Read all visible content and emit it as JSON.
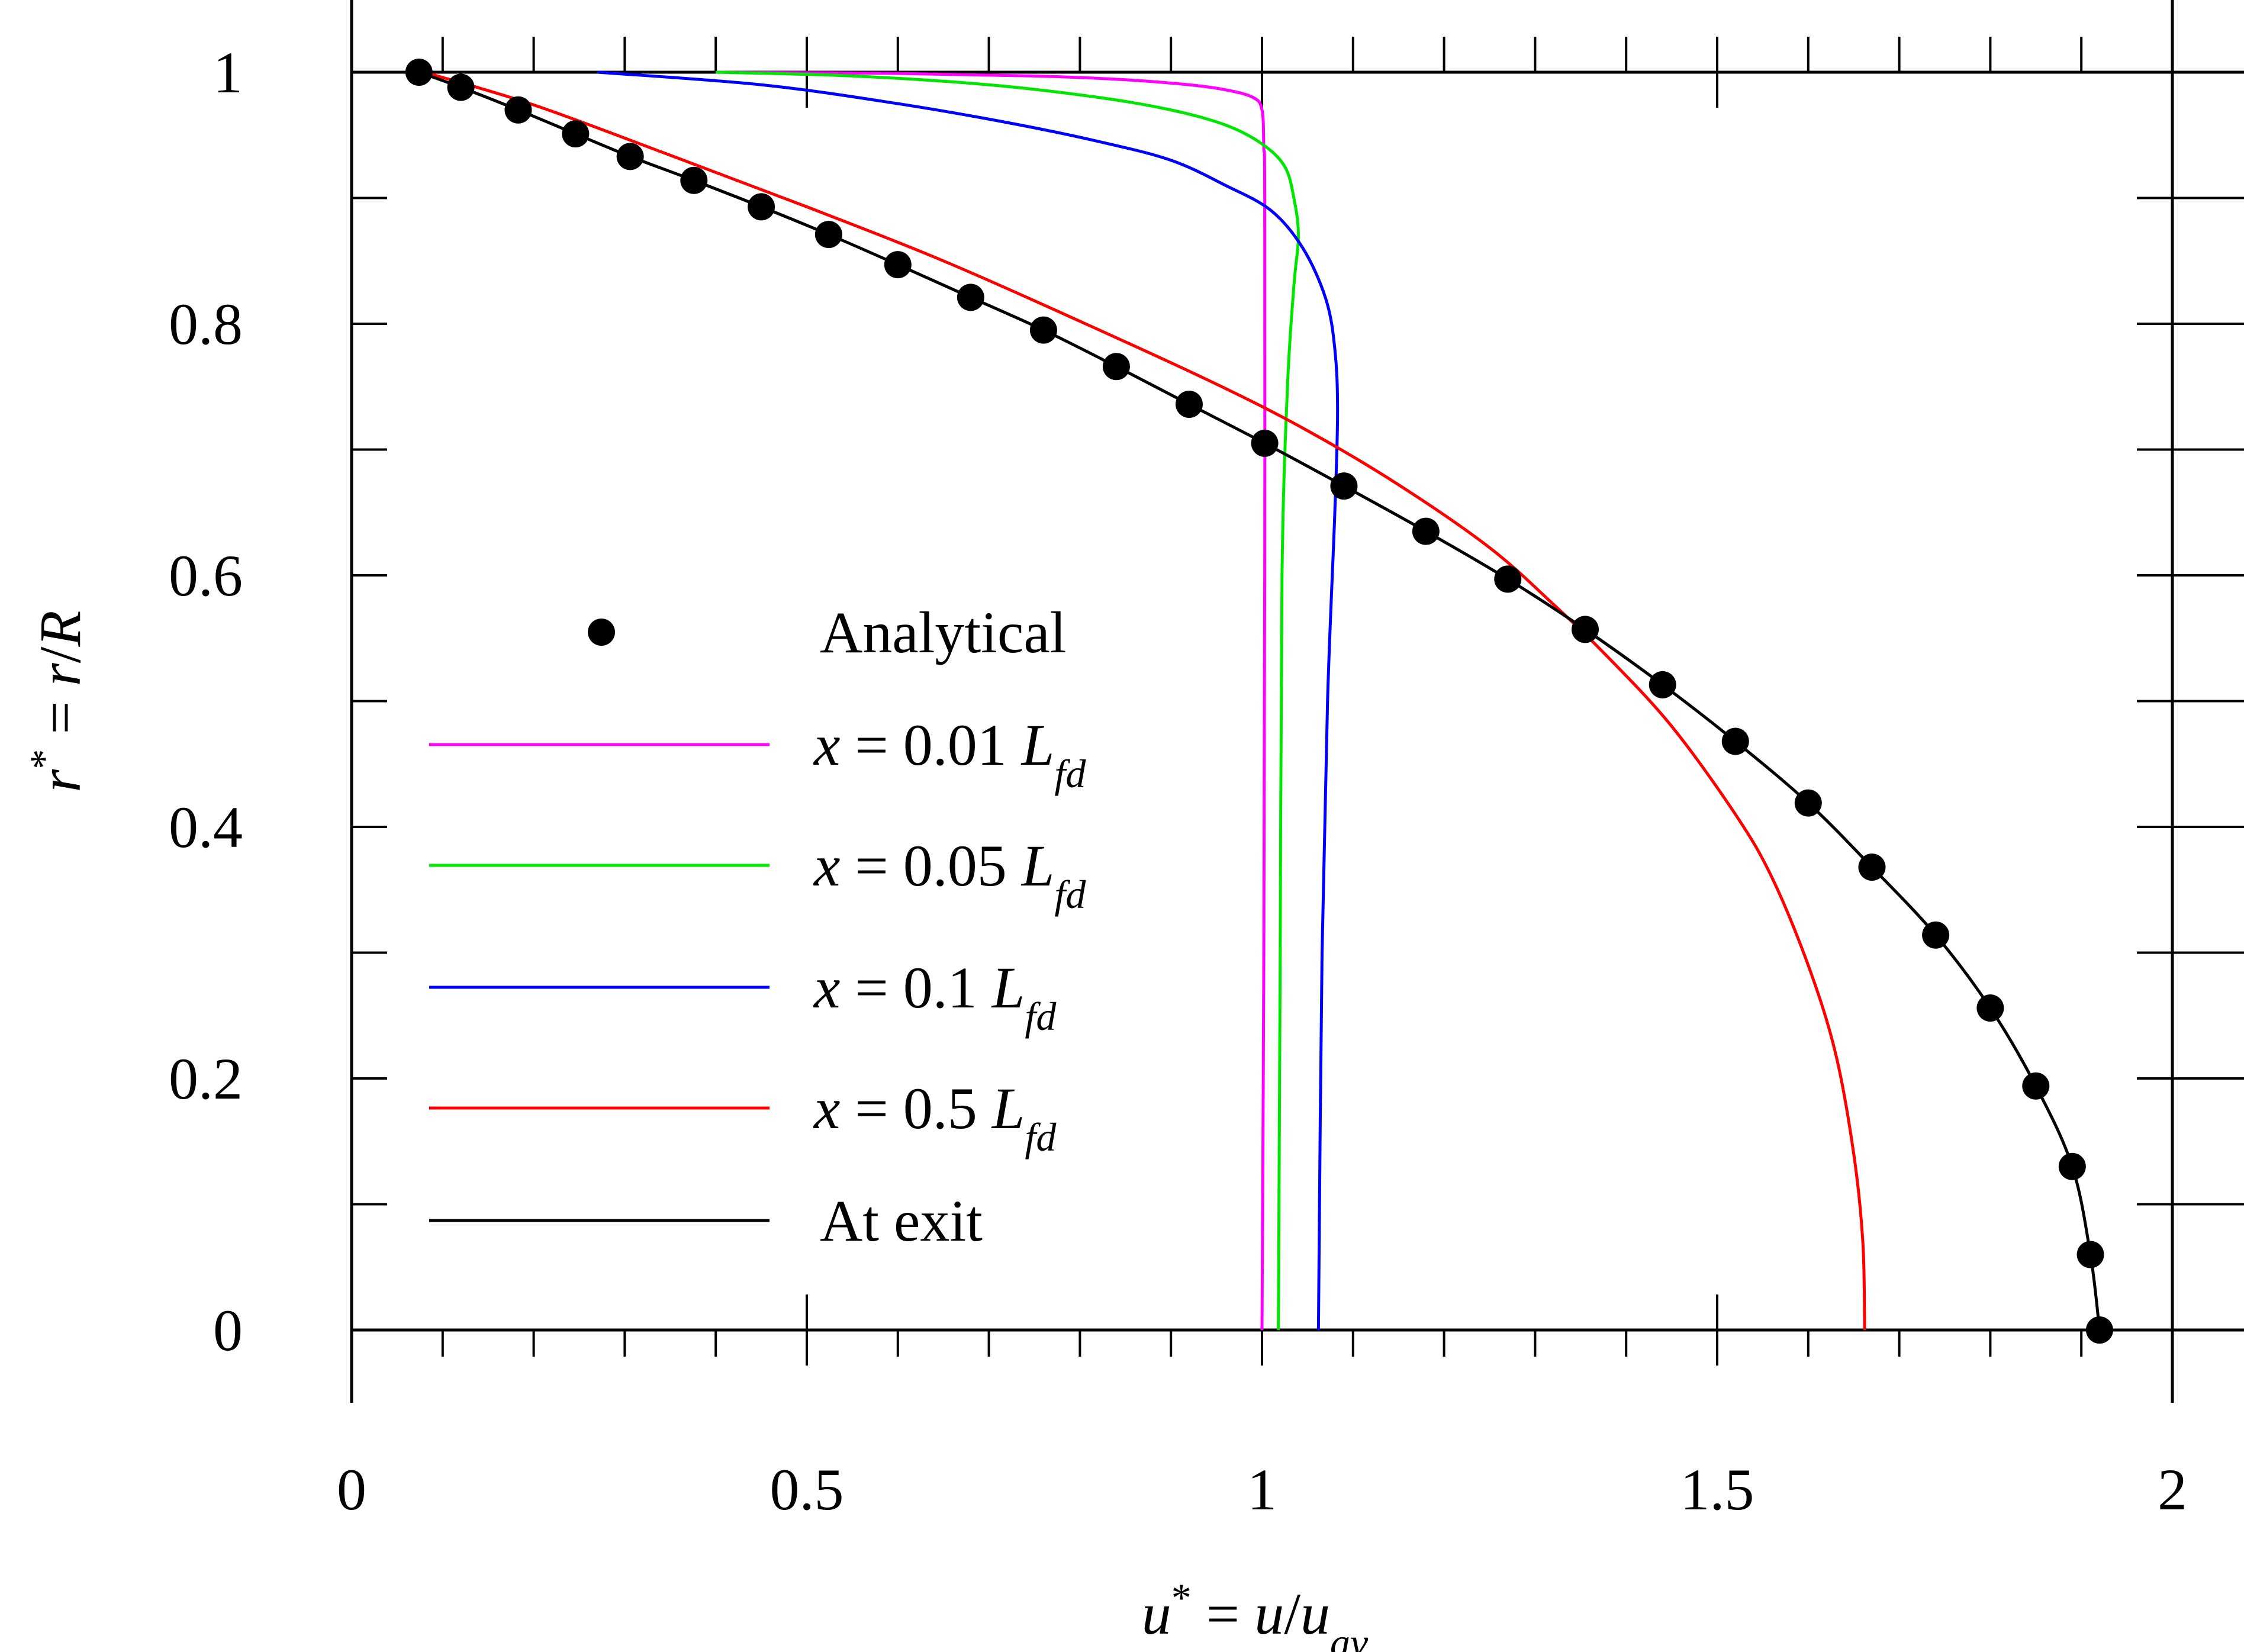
{
  "chart_data": {
    "type": "line",
    "xlabel": {
      "main": "u",
      "sup": "*",
      "mid": " = ",
      "var": "u",
      "slash": "/",
      "var2": "u",
      "sub": "av"
    },
    "ylabel": {
      "main": "r",
      "sup": "*",
      "mid": " = ",
      "var": "r",
      "slash": "/",
      "var2": "R"
    },
    "xlim": [
      0,
      2
    ],
    "ylim": [
      0,
      1
    ],
    "x_ticks": [
      0,
      0.5,
      1,
      1.5,
      2
    ],
    "x_tick_labels": [
      "0",
      "0.5",
      "1",
      "1.5",
      "2"
    ],
    "y_ticks": [
      0,
      0.2,
      0.4,
      0.6,
      0.8,
      1
    ],
    "y_tick_labels": [
      "0",
      "0.2",
      "0.4",
      "0.6",
      "0.8",
      "1"
    ],
    "legend_position": "center-left",
    "legend": [
      {
        "id": "analytical",
        "marker": "dot",
        "text": "Analytical",
        "color": "#000000"
      },
      {
        "id": "x001",
        "marker": "line",
        "prefix": "x",
        "mid": " = 0.01 ",
        "var": "L",
        "sub": "fd",
        "color": "#ff00ff"
      },
      {
        "id": "x005",
        "marker": "line",
        "prefix": "x",
        "mid": " = 0.05 ",
        "var": "L",
        "sub": "fd",
        "color": "#00e600"
      },
      {
        "id": "x01",
        "marker": "line",
        "prefix": "x",
        "mid": " = 0.1 ",
        "var": "L",
        "sub": "fd",
        "color": "#0000ff"
      },
      {
        "id": "x05",
        "marker": "line",
        "prefix": "x",
        "mid": " = 0.5 ",
        "var": "L",
        "sub": "fd",
        "color": "#ff0000"
      },
      {
        "id": "exit",
        "marker": "line",
        "text": "At exit",
        "color": "#000000"
      }
    ],
    "series": [
      {
        "name": "x = 0.01 Lfd",
        "color": "#ff00ff",
        "points": [
          [
            0.4,
            1.0
          ],
          [
            0.6,
            0.999
          ],
          [
            0.75,
            0.997
          ],
          [
            0.85,
            0.994
          ],
          [
            0.92,
            0.99
          ],
          [
            0.96,
            0.986
          ],
          [
            0.99,
            0.98
          ],
          [
            1.0,
            0.97
          ],
          [
            1.002,
            0.94
          ],
          [
            1.003,
            0.9
          ],
          [
            1.003,
            0.6
          ],
          [
            1.002,
            0.3
          ],
          [
            1.0,
            0.0
          ]
        ]
      },
      {
        "name": "x = 0.05 Lfd",
        "color": "#00e600",
        "points": [
          [
            0.4,
            1.0
          ],
          [
            0.55,
            0.997
          ],
          [
            0.7,
            0.99
          ],
          [
            0.82,
            0.98
          ],
          [
            0.9,
            0.97
          ],
          [
            0.96,
            0.958
          ],
          [
            1.0,
            0.943
          ],
          [
            1.025,
            0.925
          ],
          [
            1.035,
            0.9
          ],
          [
            1.04,
            0.87
          ],
          [
            1.035,
            0.83
          ],
          [
            1.028,
            0.75
          ],
          [
            1.022,
            0.6
          ],
          [
            1.02,
            0.3
          ],
          [
            1.018,
            0.0
          ]
        ]
      },
      {
        "name": "x = 0.1 Lfd",
        "color": "#0000ff",
        "points": [
          [
            0.27,
            1.0
          ],
          [
            0.45,
            0.99
          ],
          [
            0.6,
            0.975
          ],
          [
            0.72,
            0.96
          ],
          [
            0.82,
            0.945
          ],
          [
            0.9,
            0.93
          ],
          [
            0.96,
            0.91
          ],
          [
            1.01,
            0.89
          ],
          [
            1.045,
            0.86
          ],
          [
            1.07,
            0.82
          ],
          [
            1.08,
            0.78
          ],
          [
            1.083,
            0.73
          ],
          [
            1.08,
            0.65
          ],
          [
            1.072,
            0.5
          ],
          [
            1.066,
            0.3
          ],
          [
            1.062,
            0.0
          ]
        ]
      },
      {
        "name": "x = 0.5 Lfd",
        "color": "#ff0000",
        "points": [
          [
            0.08,
            1.0
          ],
          [
            0.2,
            0.974
          ],
          [
            0.35,
            0.934
          ],
          [
            0.5,
            0.893
          ],
          [
            0.65,
            0.85
          ],
          [
            0.8,
            0.802
          ],
          [
            0.95,
            0.752
          ],
          [
            1.05,
            0.715
          ],
          [
            1.15,
            0.672
          ],
          [
            1.25,
            0.622
          ],
          [
            1.32,
            0.577
          ],
          [
            1.38,
            0.535
          ],
          [
            1.45,
            0.48
          ],
          [
            1.52,
            0.41
          ],
          [
            1.56,
            0.36
          ],
          [
            1.6,
            0.29
          ],
          [
            1.63,
            0.22
          ],
          [
            1.65,
            0.14
          ],
          [
            1.66,
            0.07
          ],
          [
            1.662,
            0.0
          ]
        ]
      },
      {
        "name": "At exit",
        "color": "#000000",
        "points": [
          [
            0.074,
            1.0
          ],
          [
            0.12,
            0.988
          ],
          [
            0.183,
            0.97
          ],
          [
            0.246,
            0.951
          ],
          [
            0.306,
            0.933
          ],
          [
            0.376,
            0.914
          ],
          [
            0.45,
            0.893
          ],
          [
            0.524,
            0.871
          ],
          [
            0.6,
            0.847
          ],
          [
            0.68,
            0.821
          ],
          [
            0.76,
            0.795
          ],
          [
            0.84,
            0.766
          ],
          [
            0.92,
            0.736
          ],
          [
            1.003,
            0.705
          ],
          [
            1.09,
            0.671
          ],
          [
            1.18,
            0.635
          ],
          [
            1.27,
            0.597
          ],
          [
            1.355,
            0.557
          ],
          [
            1.44,
            0.513
          ],
          [
            1.52,
            0.468
          ],
          [
            1.6,
            0.419
          ],
          [
            1.67,
            0.368
          ],
          [
            1.74,
            0.314
          ],
          [
            1.8,
            0.256
          ],
          [
            1.85,
            0.194
          ],
          [
            1.89,
            0.13
          ],
          [
            1.91,
            0.06
          ],
          [
            1.92,
            0.0
          ]
        ]
      }
    ],
    "analytical_points": [
      [
        0.074,
        1.0
      ],
      [
        0.12,
        0.988
      ],
      [
        0.183,
        0.97
      ],
      [
        0.246,
        0.951
      ],
      [
        0.306,
        0.933
      ],
      [
        0.376,
        0.914
      ],
      [
        0.45,
        0.893
      ],
      [
        0.524,
        0.871
      ],
      [
        0.6,
        0.847
      ],
      [
        0.68,
        0.821
      ],
      [
        0.76,
        0.795
      ],
      [
        0.84,
        0.766
      ],
      [
        0.92,
        0.736
      ],
      [
        1.003,
        0.705
      ],
      [
        1.09,
        0.671
      ],
      [
        1.18,
        0.635
      ],
      [
        1.27,
        0.597
      ],
      [
        1.355,
        0.557
      ],
      [
        1.44,
        0.513
      ],
      [
        1.52,
        0.468
      ],
      [
        1.6,
        0.419
      ],
      [
        1.67,
        0.368
      ],
      [
        1.74,
        0.314
      ],
      [
        1.8,
        0.256
      ],
      [
        1.85,
        0.194
      ],
      [
        1.89,
        0.13
      ],
      [
        1.91,
        0.06
      ],
      [
        1.92,
        0.0
      ]
    ]
  }
}
